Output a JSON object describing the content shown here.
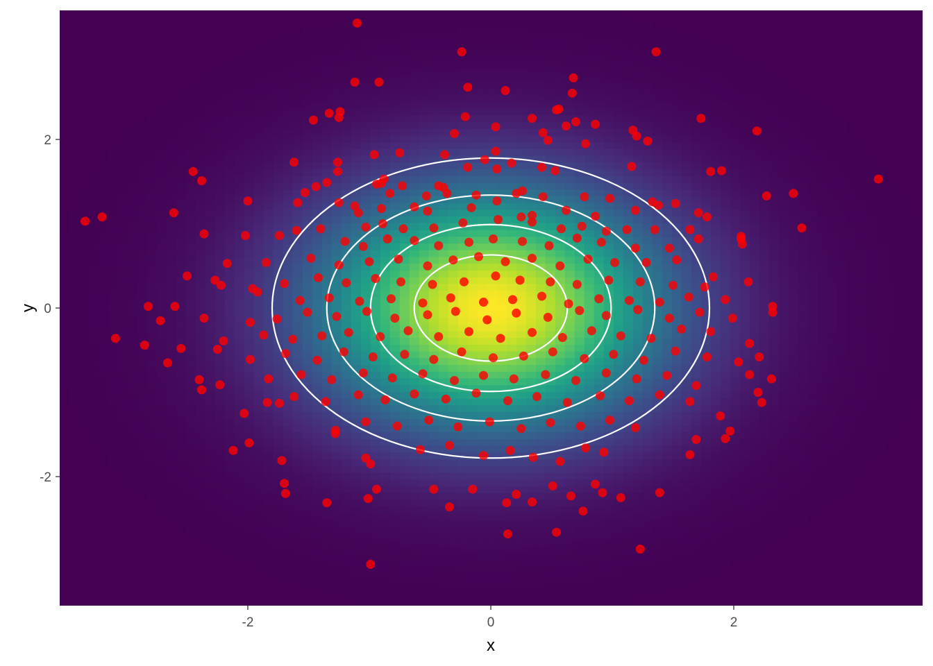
{
  "chart_data": {
    "type": "scatter",
    "title": "",
    "xlabel": "x",
    "ylabel": "y",
    "xlim": [
      -3.55,
      3.55
    ],
    "ylim": [
      -3.55,
      3.55
    ],
    "x_ticks": [
      -2,
      0,
      2
    ],
    "y_ticks": [
      -2,
      0,
      2
    ],
    "x_tick_labels": [
      "-2",
      "0",
      "2"
    ],
    "y_tick_labels": [
      "-2",
      "0",
      "2"
    ],
    "grid": false,
    "legend": "none",
    "background": {
      "type": "heatmap",
      "description_kind": "bivariate normal density",
      "center": [
        0,
        0
      ],
      "sd": [
        1,
        1
      ],
      "colormap": [
        "#440154",
        "#482878",
        "#3E4A89",
        "#31688E",
        "#26828E",
        "#1F9E89",
        "#35B779",
        "#6DCD59",
        "#B4DE2C",
        "#FDE725"
      ]
    },
    "contours": {
      "color": "#FFFFFF",
      "center": [
        0,
        0
      ],
      "radii": [
        [
          1.8,
          1.78
        ],
        [
          1.35,
          1.34
        ],
        [
          0.99,
          0.99
        ],
        [
          0.63,
          0.63
        ]
      ]
    },
    "points_color": "#FF0000",
    "points": [
      [
        -1.1,
        3.38
      ],
      [
        -0.24,
        3.04
      ],
      [
        1.36,
        3.04
      ],
      [
        0.12,
        2.58
      ],
      [
        -0.19,
        2.62
      ],
      [
        -0.92,
        2.68
      ],
      [
        -1.12,
        2.68
      ],
      [
        0.68,
        2.73
      ],
      [
        0.67,
        2.55
      ],
      [
        -1.33,
        2.31
      ],
      [
        -1.46,
        2.23
      ],
      [
        -1.24,
        2.33
      ],
      [
        -1.25,
        2.26
      ],
      [
        0.56,
        2.36
      ],
      [
        0.54,
        2.35
      ],
      [
        -0.21,
        2.27
      ],
      [
        0.62,
        2.16
      ],
      [
        0.7,
        2.21
      ],
      [
        1.17,
        2.11
      ],
      [
        1.2,
        2.04
      ],
      [
        1.29,
        1.98
      ],
      [
        0.86,
        2.18
      ],
      [
        -0.3,
        2.07
      ],
      [
        0.04,
        2.15
      ],
      [
        0.34,
        2.25
      ],
      [
        0.47,
        1.99
      ],
      [
        0.43,
        2.08
      ],
      [
        1.73,
        2.25
      ],
      [
        2.19,
        2.1
      ],
      [
        0.78,
        1.95
      ],
      [
        0.04,
        1.86
      ],
      [
        -0.75,
        1.84
      ],
      [
        -0.96,
        1.82
      ],
      [
        -1.26,
        1.73
      ],
      [
        -1.26,
        1.62
      ],
      [
        -1.62,
        1.73
      ],
      [
        -2.45,
        1.62
      ],
      [
        -2.38,
        1.51
      ],
      [
        -0.38,
        1.82
      ],
      [
        -0.19,
        1.67
      ],
      [
        0.05,
        1.65
      ],
      [
        0.17,
        1.72
      ],
      [
        0.42,
        1.67
      ],
      [
        0.53,
        1.63
      ],
      [
        1.16,
        1.68
      ],
      [
        1.81,
        1.62
      ],
      [
        1.9,
        1.63
      ],
      [
        -0.05,
        1.76
      ],
      [
        -1.35,
        1.49
      ],
      [
        -1.25,
        1.25
      ],
      [
        -1.12,
        1.21
      ],
      [
        -0.9,
        1.48
      ],
      [
        -0.88,
        1.53
      ],
      [
        -0.83,
        1.36
      ],
      [
        -0.53,
        1.33
      ],
      [
        -0.43,
        1.45
      ],
      [
        -0.39,
        1.43
      ],
      [
        -0.36,
        1.36
      ],
      [
        -0.12,
        1.34
      ],
      [
        0.05,
        1.27
      ],
      [
        0.21,
        1.36
      ],
      [
        0.26,
        1.39
      ],
      [
        0.43,
        1.32
      ],
      [
        0.77,
        1.32
      ],
      [
        0.98,
        1.3
      ],
      [
        1.33,
        1.26
      ],
      [
        1.38,
        1.22
      ],
      [
        2.06,
        0.85
      ],
      [
        2.27,
        1.33
      ],
      [
        2.49,
        1.36
      ],
      [
        3.19,
        1.53
      ],
      [
        -2.0,
        1.27
      ],
      [
        -2.61,
        1.13
      ],
      [
        -3.34,
        1.03
      ],
      [
        -3.2,
        1.08
      ],
      [
        -2.36,
        0.88
      ],
      [
        -1.59,
        1.25
      ],
      [
        -1.53,
        1.37
      ],
      [
        -1.44,
        1.44
      ],
      [
        -0.73,
        1.45
      ],
      [
        -0.94,
        1.47
      ],
      [
        -0.63,
        1.2
      ],
      [
        -0.52,
        1.15
      ],
      [
        -0.16,
        1.19
      ],
      [
        0.25,
        1.08
      ],
      [
        0.34,
        1.1
      ],
      [
        0.62,
        1.16
      ],
      [
        0.86,
        1.09
      ],
      [
        1.19,
        1.16
      ],
      [
        1.52,
        1.24
      ],
      [
        1.71,
        1.13
      ],
      [
        1.78,
        1.08
      ],
      [
        2.06,
        0.82
      ],
      [
        2.56,
        0.95
      ],
      [
        -0.9,
        1.18
      ],
      [
        -1.09,
        1.13
      ],
      [
        -1.03,
        0.96
      ],
      [
        -0.89,
        1.0
      ],
      [
        -0.72,
        0.94
      ],
      [
        -0.47,
        0.95
      ],
      [
        -0.23,
        1.01
      ],
      [
        0.06,
        1.05
      ],
      [
        0.34,
        1.02
      ],
      [
        0.58,
        0.94
      ],
      [
        0.75,
        0.97
      ],
      [
        0.95,
        0.91
      ],
      [
        1.12,
        0.93
      ],
      [
        1.35,
        0.93
      ],
      [
        1.64,
        0.93
      ],
      [
        -2.02,
        0.86
      ],
      [
        -1.74,
        0.86
      ],
      [
        -1.6,
        0.92
      ],
      [
        -1.4,
        0.94
      ],
      [
        -1.2,
        0.79
      ],
      [
        -1.05,
        0.73
      ],
      [
        -0.85,
        0.82
      ],
      [
        -0.63,
        0.8
      ],
      [
        -0.43,
        0.74
      ],
      [
        -0.18,
        0.78
      ],
      [
        0.02,
        0.82
      ],
      [
        0.26,
        0.79
      ],
      [
        0.48,
        0.74
      ],
      [
        0.71,
        0.83
      ],
      [
        0.91,
        0.78
      ],
      [
        1.19,
        0.71
      ],
      [
        1.47,
        0.71
      ],
      [
        1.71,
        0.82
      ],
      [
        2.07,
        0.76
      ],
      [
        -2.17,
        0.53
      ],
      [
        -1.85,
        0.54
      ],
      [
        -1.48,
        0.59
      ],
      [
        -1.25,
        0.51
      ],
      [
        -1.0,
        0.55
      ],
      [
        -0.76,
        0.58
      ],
      [
        -0.52,
        0.5
      ],
      [
        -0.31,
        0.57
      ],
      [
        -0.1,
        0.61
      ],
      [
        0.12,
        0.55
      ],
      [
        0.34,
        0.59
      ],
      [
        0.57,
        0.5
      ],
      [
        0.8,
        0.58
      ],
      [
        1.02,
        0.54
      ],
      [
        1.28,
        0.54
      ],
      [
        1.53,
        0.57
      ],
      [
        1.83,
        0.37
      ],
      [
        -2.5,
        0.38
      ],
      [
        -2.27,
        0.33
      ],
      [
        -1.96,
        0.23
      ],
      [
        -1.7,
        0.29
      ],
      [
        -1.42,
        0.36
      ],
      [
        -1.19,
        0.3
      ],
      [
        -0.95,
        0.35
      ],
      [
        -0.74,
        0.31
      ],
      [
        -0.48,
        0.28
      ],
      [
        -0.22,
        0.31
      ],
      [
        0.04,
        0.38
      ],
      [
        0.24,
        0.33
      ],
      [
        0.49,
        0.31
      ],
      [
        0.71,
        0.28
      ],
      [
        0.97,
        0.33
      ],
      [
        1.23,
        0.31
      ],
      [
        1.5,
        0.27
      ],
      [
        1.76,
        0.25
      ],
      [
        2.12,
        0.31
      ],
      [
        -2.22,
        0.27
      ],
      [
        -1.92,
        0.19
      ],
      [
        -1.57,
        0.09
      ],
      [
        -1.33,
        0.12
      ],
      [
        -1.08,
        0.08
      ],
      [
        -0.82,
        0.11
      ],
      [
        -0.56,
        0.06
      ],
      [
        -0.33,
        0.12
      ],
      [
        -0.06,
        0.07
      ],
      [
        0.18,
        0.1
      ],
      [
        0.42,
        0.14
      ],
      [
        0.64,
        0.05
      ],
      [
        0.89,
        0.11
      ],
      [
        1.14,
        0.09
      ],
      [
        1.39,
        0.07
      ],
      [
        1.63,
        0.13
      ],
      [
        1.93,
        0.1
      ],
      [
        2.32,
        0.02
      ],
      [
        -2.82,
        0.02
      ],
      [
        -2.6,
        0.02
      ],
      [
        -2.72,
        -0.15
      ],
      [
        -2.36,
        -0.12
      ],
      [
        -1.98,
        -0.17
      ],
      [
        -1.76,
        -0.13
      ],
      [
        -1.51,
        -0.05
      ],
      [
        -1.27,
        -0.1
      ],
      [
        -1.02,
        -0.04
      ],
      [
        -0.79,
        -0.12
      ],
      [
        -0.52,
        -0.08
      ],
      [
        -0.29,
        -0.04
      ],
      [
        -0.03,
        -0.14
      ],
      [
        0.21,
        -0.06
      ],
      [
        0.47,
        -0.11
      ],
      [
        0.73,
        -0.03
      ],
      [
        0.95,
        -0.09
      ],
      [
        1.21,
        -0.02
      ],
      [
        1.47,
        -0.12
      ],
      [
        1.72,
        -0.05
      ],
      [
        1.99,
        -0.12
      ],
      [
        2.32,
        -0.05
      ],
      [
        -3.09,
        -0.36
      ],
      [
        -2.85,
        -0.44
      ],
      [
        -2.55,
        -0.48
      ],
      [
        -2.2,
        -0.39
      ],
      [
        -1.87,
        -0.32
      ],
      [
        -1.63,
        -0.37
      ],
      [
        -1.39,
        -0.33
      ],
      [
        -1.17,
        -0.29
      ],
      [
        -0.91,
        -0.34
      ],
      [
        -0.68,
        -0.27
      ],
      [
        -0.43,
        -0.34
      ],
      [
        -0.18,
        -0.28
      ],
      [
        0.08,
        -0.36
      ],
      [
        0.34,
        -0.29
      ],
      [
        0.59,
        -0.35
      ],
      [
        0.83,
        -0.27
      ],
      [
        1.07,
        -0.33
      ],
      [
        1.32,
        -0.36
      ],
      [
        1.57,
        -0.25
      ],
      [
        1.81,
        -0.28
      ],
      [
        2.13,
        -0.42
      ],
      [
        -2.66,
        -0.65
      ],
      [
        -2.25,
        -0.49
      ],
      [
        -1.98,
        -0.61
      ],
      [
        -1.69,
        -0.54
      ],
      [
        -1.43,
        -0.62
      ],
      [
        -1.21,
        -0.52
      ],
      [
        -0.97,
        -0.58
      ],
      [
        -0.71,
        -0.55
      ],
      [
        -0.47,
        -0.61
      ],
      [
        -0.24,
        -0.52
      ],
      [
        0.02,
        -0.59
      ],
      [
        0.27,
        -0.57
      ],
      [
        0.51,
        -0.52
      ],
      [
        0.77,
        -0.6
      ],
      [
        1.01,
        -0.55
      ],
      [
        1.26,
        -0.62
      ],
      [
        1.52,
        -0.51
      ],
      [
        1.78,
        -0.58
      ],
      [
        2.04,
        -0.64
      ],
      [
        2.21,
        -0.58
      ],
      [
        -2.4,
        -0.85
      ],
      [
        -2.23,
        -0.91
      ],
      [
        -1.83,
        -0.84
      ],
      [
        -1.56,
        -0.79
      ],
      [
        -1.31,
        -0.85
      ],
      [
        -1.05,
        -0.77
      ],
      [
        -0.81,
        -0.83
      ],
      [
        -0.56,
        -0.78
      ],
      [
        -0.3,
        -0.86
      ],
      [
        -0.06,
        -0.8
      ],
      [
        0.19,
        -0.84
      ],
      [
        0.45,
        -0.79
      ],
      [
        0.7,
        -0.86
      ],
      [
        0.95,
        -0.77
      ],
      [
        1.2,
        -0.84
      ],
      [
        1.45,
        -0.8
      ],
      [
        1.69,
        -0.92
      ],
      [
        2.13,
        -0.79
      ],
      [
        2.31,
        -0.84
      ],
      [
        -2.38,
        -0.97
      ],
      [
        -1.84,
        -1.12
      ],
      [
        -1.62,
        -1.05
      ],
      [
        -1.36,
        -1.11
      ],
      [
        -1.09,
        -1.03
      ],
      [
        -0.87,
        -1.09
      ],
      [
        -0.63,
        -1.02
      ],
      [
        -0.37,
        -1.08
      ],
      [
        -0.12,
        -1.01
      ],
      [
        0.14,
        -1.1
      ],
      [
        0.38,
        -1.05
      ],
      [
        0.63,
        -1.12
      ],
      [
        0.9,
        -1.04
      ],
      [
        1.14,
        -1.1
      ],
      [
        1.39,
        -1.03
      ],
      [
        1.64,
        -1.11
      ],
      [
        2.2,
        -1.0
      ],
      [
        2.23,
        -1.12
      ],
      [
        -1.74,
        -1.13
      ],
      [
        -1.28,
        -1.45
      ],
      [
        -1.03,
        -1.35
      ],
      [
        -0.77,
        -1.4
      ],
      [
        -0.51,
        -1.33
      ],
      [
        -0.27,
        -1.41
      ],
      [
        -0.01,
        -1.35
      ],
      [
        0.25,
        -1.43
      ],
      [
        0.49,
        -1.36
      ],
      [
        0.74,
        -1.4
      ],
      [
        0.98,
        -1.33
      ],
      [
        1.19,
        -1.42
      ],
      [
        1.69,
        -1.56
      ],
      [
        1.89,
        -1.28
      ],
      [
        1.97,
        -1.46
      ],
      [
        -2.03,
        -1.25
      ],
      [
        -1.99,
        -1.6
      ],
      [
        -2.12,
        -1.69
      ],
      [
        -1.72,
        -1.81
      ],
      [
        -1.28,
        -1.49
      ],
      [
        -1.03,
        -1.78
      ],
      [
        -0.99,
        -1.85
      ],
      [
        -0.58,
        -1.68
      ],
      [
        -0.34,
        -1.63
      ],
      [
        -0.06,
        -1.75
      ],
      [
        0.16,
        -1.69
      ],
      [
        0.35,
        -1.77
      ],
      [
        0.57,
        -1.82
      ],
      [
        0.78,
        -1.66
      ],
      [
        0.93,
        -1.71
      ],
      [
        1.64,
        -1.74
      ],
      [
        1.93,
        -1.55
      ],
      [
        -1.7,
        -2.08
      ],
      [
        -1.69,
        -2.2
      ],
      [
        -1.35,
        -2.31
      ],
      [
        -1.01,
        -2.26
      ],
      [
        -0.94,
        -2.15
      ],
      [
        -0.47,
        -2.15
      ],
      [
        -0.15,
        -2.15
      ],
      [
        -0.34,
        -2.36
      ],
      [
        0.13,
        -2.31
      ],
      [
        0.21,
        -2.21
      ],
      [
        0.34,
        -2.3
      ],
      [
        0.51,
        -2.11
      ],
      [
        0.66,
        -2.23
      ],
      [
        0.76,
        -2.41
      ],
      [
        0.86,
        -2.09
      ],
      [
        0.92,
        -2.19
      ],
      [
        1.07,
        -2.25
      ],
      [
        1.39,
        -2.19
      ],
      [
        0.14,
        -2.68
      ],
      [
        0.54,
        -2.66
      ],
      [
        1.23,
        -2.86
      ],
      [
        -0.99,
        -3.04
      ]
    ]
  }
}
